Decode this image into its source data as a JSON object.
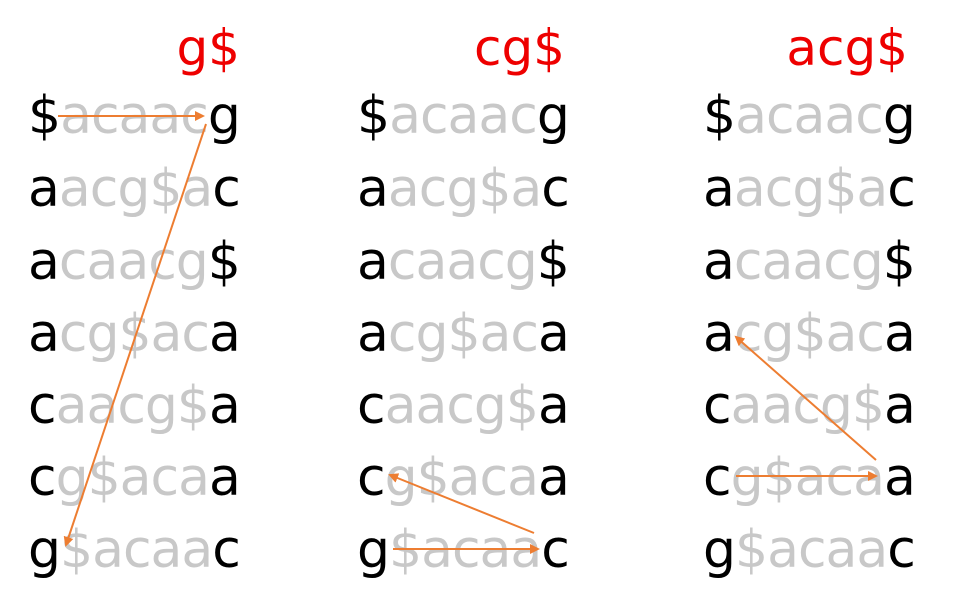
{
  "panels": [
    {
      "query": "g$",
      "rows": [
        {
          "first": "$",
          "middle": "acaac",
          "last": "g"
        },
        {
          "first": "a",
          "middle": "acg$a",
          "last": "c"
        },
        {
          "first": "a",
          "middle": "caacg",
          "last": "$"
        },
        {
          "first": "a",
          "middle": "cg$ac",
          "last": "a"
        },
        {
          "first": "c",
          "middle": "aacg$",
          "last": "a"
        },
        {
          "first": "c",
          "middle": "g$aca",
          "last": "a"
        },
        {
          "first": "g",
          "middle": "$acaa",
          "last": "c"
        }
      ]
    },
    {
      "query": "cg$",
      "rows": [
        {
          "first": "$",
          "middle": "acaac",
          "last": "g"
        },
        {
          "first": "a",
          "middle": "acg$a",
          "last": "c"
        },
        {
          "first": "a",
          "middle": "caacg",
          "last": "$"
        },
        {
          "first": "a",
          "middle": "cg$ac",
          "last": "a"
        },
        {
          "first": "c",
          "middle": "aacg$",
          "last": "a"
        },
        {
          "first": "c",
          "middle": "g$aca",
          "last": "a"
        },
        {
          "first": "g",
          "middle": "$acaa",
          "last": "c"
        }
      ]
    },
    {
      "query": "acg$",
      "rows": [
        {
          "first": "$",
          "middle": "acaac",
          "last": "g"
        },
        {
          "first": "a",
          "middle": "acg$a",
          "last": "c"
        },
        {
          "first": "a",
          "middle": "caacg",
          "last": "$"
        },
        {
          "first": "a",
          "middle": "cg$ac",
          "last": "a"
        },
        {
          "first": "c",
          "middle": "aacg$",
          "last": "a"
        },
        {
          "first": "c",
          "middle": "g$aca",
          "last": "a"
        },
        {
          "first": "g",
          "middle": "$acaa",
          "last": "c"
        }
      ]
    }
  ],
  "colors": {
    "query": "#ee0000",
    "first_last": "#000000",
    "middle": "#c8c8c8",
    "arrow": "#ed7d31"
  }
}
